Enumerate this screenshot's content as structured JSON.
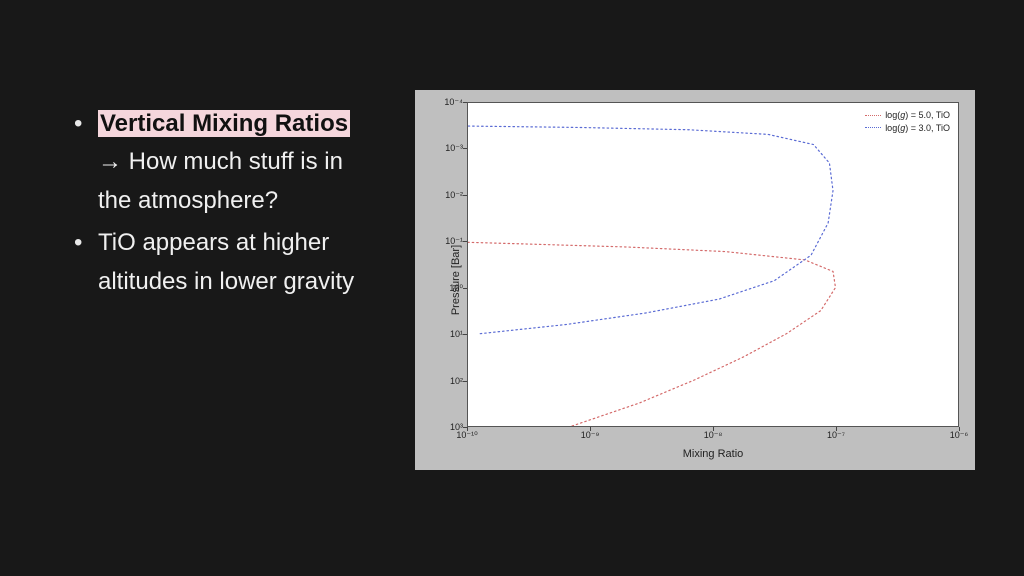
{
  "slide": {
    "background_color": "#181818",
    "text_color": "#f0f0f0",
    "bullets": [
      {
        "highlight_text": "Vertical Mixing Ratios",
        "highlight_bg": "#f5d6dc",
        "highlight_fg": "#111111",
        "arrow": "→",
        "rest_text": " How much stuff is in the atmosphere?"
      },
      {
        "plain_text": "TiO appears at higher altitudes in lower gravity"
      }
    ],
    "font_size_pt": 24
  },
  "chart": {
    "type": "line",
    "panel_bg": "#bfbfbf",
    "plot_bg": "#ffffff",
    "axis_color": "#555555",
    "xlabel": "Mixing Ratio",
    "ylabel": "Pressure [Bar]",
    "label_fontsize": 11,
    "tick_fontsize": 9,
    "xscale": "log",
    "yscale": "log",
    "y_inverted": true,
    "xlim": [
      1e-10,
      1e-06
    ],
    "ylim": [
      1000.0,
      0.0001
    ],
    "xticks": [
      1e-10,
      1e-09,
      1e-08,
      1e-07,
      1e-06
    ],
    "xtick_labels": [
      "10⁻¹⁰",
      "10⁻⁹",
      "10⁻⁸",
      "10⁻⁷",
      "10⁻⁶"
    ],
    "yticks": [
      0.0001,
      0.001,
      0.01,
      0.1,
      1.0,
      10.0,
      100.0,
      1000.0
    ],
    "ytick_labels": [
      "10⁻⁴",
      "10⁻³",
      "10⁻²",
      "10⁻¹",
      "10⁰",
      "10¹",
      "10²",
      "10³"
    ],
    "legend_pos": "upper-right",
    "series": [
      {
        "label": "log(g) = 5.0, TiO",
        "color": "#d46a6a",
        "linestyle": "dotted",
        "linewidth": 1.2,
        "points_logx_logy": [
          [
            -9.15,
            3.0
          ],
          [
            -8.6,
            2.5
          ],
          [
            -8.15,
            2.0
          ],
          [
            -7.75,
            1.5
          ],
          [
            -7.4,
            1.0
          ],
          [
            -7.12,
            0.5
          ],
          [
            -7.0,
            0.0
          ],
          [
            -7.02,
            -0.35
          ],
          [
            -7.25,
            -0.6
          ],
          [
            -7.9,
            -0.78
          ],
          [
            -8.7,
            -0.88
          ],
          [
            -9.6,
            -0.95
          ],
          [
            -10.0,
            -0.98
          ]
        ]
      },
      {
        "label": "log(g) = 3.0, TiO",
        "color": "#5a6bd4",
        "linestyle": "dotted",
        "linewidth": 1.2,
        "points_logx_logy": [
          [
            -9.9,
            1.0
          ],
          [
            -9.2,
            0.8
          ],
          [
            -8.55,
            0.55
          ],
          [
            -7.95,
            0.25
          ],
          [
            -7.5,
            -0.15
          ],
          [
            -7.2,
            -0.7
          ],
          [
            -7.06,
            -1.4
          ],
          [
            -7.02,
            -2.1
          ],
          [
            -7.05,
            -2.7
          ],
          [
            -7.18,
            -3.1
          ],
          [
            -7.55,
            -3.32
          ],
          [
            -8.2,
            -3.42
          ],
          [
            -9.1,
            -3.47
          ],
          [
            -10.0,
            -3.5
          ]
        ]
      }
    ]
  }
}
